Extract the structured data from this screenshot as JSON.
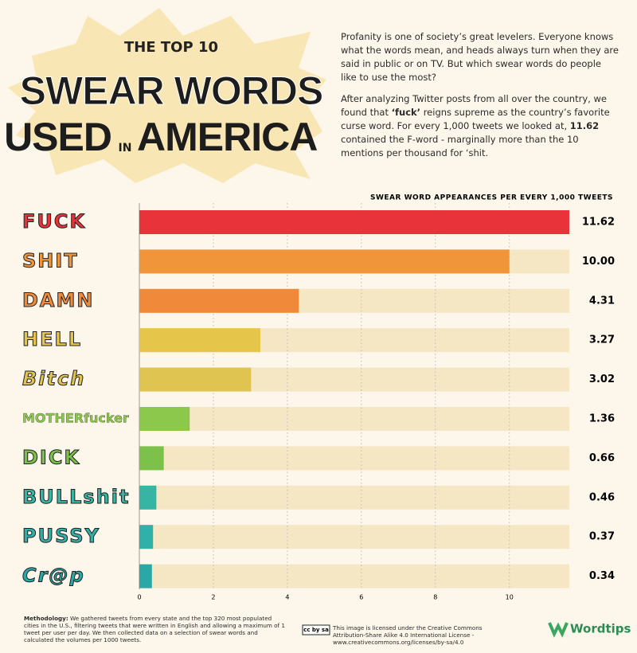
{
  "header": {
    "pre_title": "THE TOP 10",
    "title_line1": "SWEAR WORDS",
    "title_used": "USED",
    "title_in": "IN",
    "title_america": "AMERICA"
  },
  "intro": {
    "p1": "Profanity is one of society’s great levelers. Everyone knows what the words mean, and heads always turn when they are said in public or on TV. But which swear words do people like to use the most?",
    "p2": [
      "After analyzing Twitter posts from all over the country, we found that ",
      "‘fuck’",
      " reigns supreme as the country’s favorite curse word. For every 1,000 tweets we looked at, ",
      "11.62",
      " contained the F-word - marginally more than the 10 mentions per thousand for ‘shit."
    ]
  },
  "chart_data": {
    "type": "bar",
    "orientation": "horizontal",
    "subtitle": "SWEAR WORD APPEARANCES PER EVERY 1,000 TWEETS",
    "categories": [
      "FUCK",
      "SHIT",
      "DAMN",
      "HELL",
      "Bitch",
      "MOTHERfucker",
      "DICK",
      "BULLshit",
      "PUSSY",
      "Cr@p"
    ],
    "values": [
      11.62,
      10.0,
      4.31,
      3.27,
      3.02,
      1.36,
      0.66,
      0.46,
      0.37,
      0.34
    ],
    "value_labels": [
      "11.62",
      "10.00",
      "4.31",
      "3.27",
      "3.02",
      "1.36",
      "0.66",
      "0.46",
      "0.37",
      "0.34"
    ],
    "colors": [
      "#e8333a",
      "#f0953a",
      "#f08a3a",
      "#e6c64a",
      "#e0c452",
      "#8cc84b",
      "#7cc24a",
      "#36b5a5",
      "#2fb0a8",
      "#2aa8a5"
    ],
    "xlim": [
      0,
      11.62
    ],
    "xticks": [
      0,
      2,
      4,
      6,
      8,
      10
    ],
    "grid": true
  },
  "footer": {
    "methodology_label": "Methodology:",
    "methodology": " We gathered tweets from every state and the top 320 most populated cities in the U.S., filtering tweets that were written in English and allowing a maximum of 1 tweet per user per day. We then collected data on a selection of swear words and calculated the volumes per 1000 tweets.",
    "license": "This image is licensed under the Creative Commons Attribution-Share Alike 4.0 International License - www.creativecommons.org/licenses/by-sa/4.0",
    "license_badge": "cc by sa",
    "brand": "Wordtips"
  }
}
